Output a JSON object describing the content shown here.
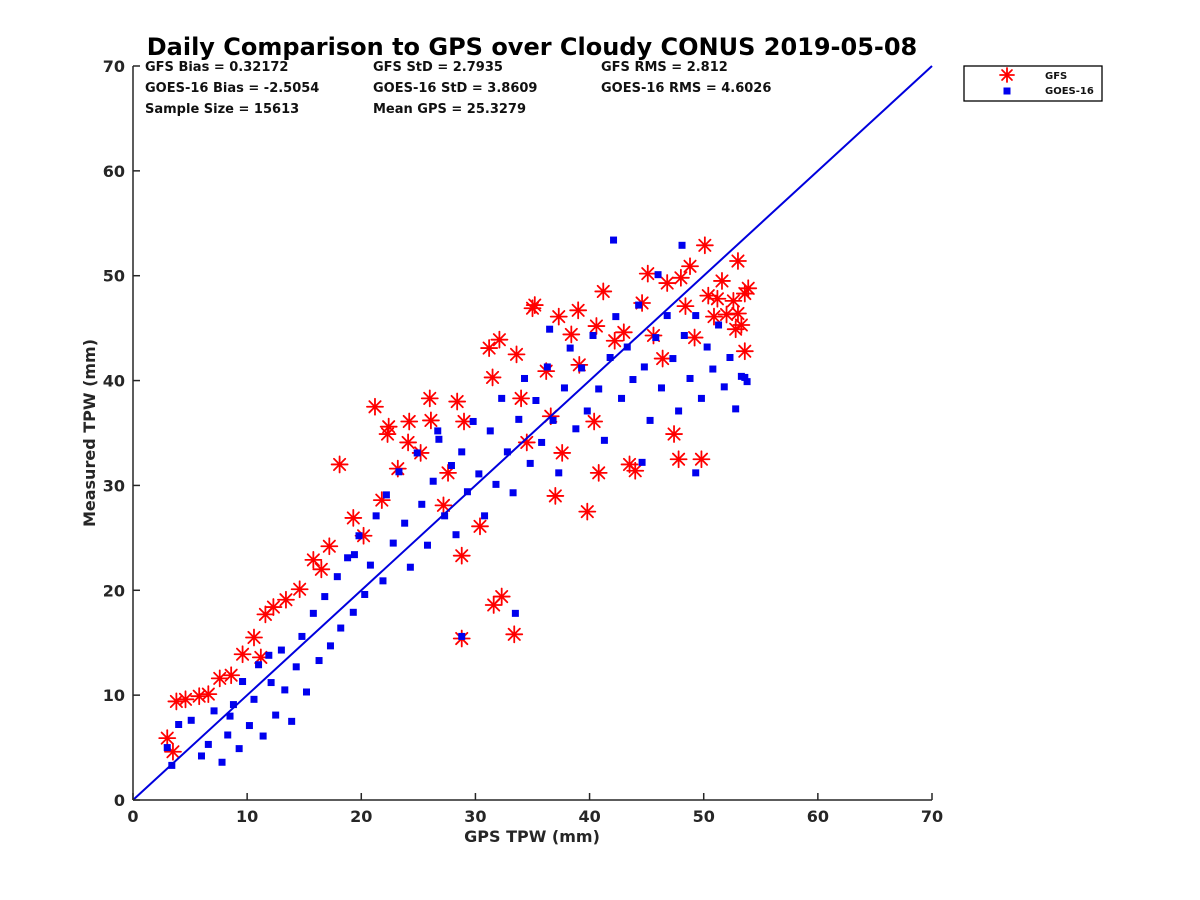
{
  "chart_data": {
    "type": "scatter",
    "title": "Daily Comparison to GPS over Cloudy CONUS 2019-05-08",
    "xlabel": "GPS TPW (mm)",
    "ylabel": "Measured TPW (mm)",
    "xlim": [
      0,
      70
    ],
    "ylim": [
      0,
      70
    ],
    "xticks": [
      0,
      10,
      20,
      30,
      40,
      50,
      60,
      70
    ],
    "yticks": [
      0,
      10,
      20,
      30,
      40,
      50,
      60,
      70
    ],
    "grid": false,
    "legend_position": "outside-top-right",
    "one_to_one_line": {
      "x": [
        0,
        70
      ],
      "y": [
        0,
        70
      ],
      "color": "#0000dd"
    },
    "stats": [
      {
        "text": "GFS Bias = 0.32172"
      },
      {
        "text": "GFS StD = 2.7935"
      },
      {
        "text": "GFS RMS = 2.812"
      },
      {
        "text": "GOES-16 Bias = -2.5054"
      },
      {
        "text": "GOES-16 StD = 3.8609"
      },
      {
        "text": "GOES-16 RMS = 4.6026"
      },
      {
        "text": "Sample Size = 15613"
      },
      {
        "text": "Mean GPS = 25.3279"
      }
    ],
    "series": [
      {
        "name": "GFS",
        "marker": "asterisk",
        "color": "#ff0000",
        "points": [
          [
            3.0,
            5.9
          ],
          [
            3.5,
            4.6
          ],
          [
            3.8,
            9.4
          ],
          [
            4.6,
            9.6
          ],
          [
            5.8,
            9.9
          ],
          [
            6.6,
            10.1
          ],
          [
            7.6,
            11.6
          ],
          [
            8.6,
            11.9
          ],
          [
            9.6,
            13.9
          ],
          [
            10.6,
            15.5
          ],
          [
            11.6,
            17.7
          ],
          [
            12.3,
            18.4
          ],
          [
            13.4,
            19.1
          ],
          [
            14.6,
            20.1
          ],
          [
            15.8,
            22.9
          ],
          [
            17.2,
            24.2
          ],
          [
            18.1,
            32.0
          ],
          [
            19.3,
            26.9
          ],
          [
            21.2,
            37.5
          ],
          [
            21.8,
            28.6
          ],
          [
            22.3,
            34.9
          ],
          [
            22.4,
            35.6
          ],
          [
            23.2,
            31.6
          ],
          [
            24.2,
            36.1
          ],
          [
            24.1,
            34.1
          ],
          [
            25.2,
            33.1
          ],
          [
            26.0,
            38.3
          ],
          [
            26.1,
            36.2
          ],
          [
            27.6,
            31.2
          ],
          [
            28.4,
            38.0
          ],
          [
            29.0,
            36.1
          ],
          [
            28.8,
            23.3
          ],
          [
            28.8,
            15.4
          ],
          [
            30.4,
            26.1
          ],
          [
            31.2,
            43.1
          ],
          [
            31.6,
            18.6
          ],
          [
            32.3,
            19.4
          ],
          [
            32.1,
            43.9
          ],
          [
            33.4,
            15.8
          ],
          [
            33.6,
            42.5
          ],
          [
            34.0,
            38.3
          ],
          [
            34.5,
            34.1
          ],
          [
            35.0,
            46.9
          ],
          [
            35.2,
            47.2
          ],
          [
            36.2,
            40.9
          ],
          [
            37.0,
            29.0
          ],
          [
            37.3,
            46.1
          ],
          [
            37.6,
            33.1
          ],
          [
            38.4,
            44.4
          ],
          [
            39.0,
            46.7
          ],
          [
            39.1,
            41.5
          ],
          [
            39.8,
            27.5
          ],
          [
            40.4,
            36.1
          ],
          [
            40.8,
            31.2
          ],
          [
            41.2,
            48.5
          ],
          [
            42.2,
            43.8
          ],
          [
            43.0,
            44.6
          ],
          [
            43.5,
            32.0
          ],
          [
            44.0,
            31.4
          ],
          [
            44.6,
            47.4
          ],
          [
            45.1,
            50.2
          ],
          [
            45.6,
            44.3
          ],
          [
            46.4,
            42.1
          ],
          [
            46.8,
            49.3
          ],
          [
            47.4,
            34.9
          ],
          [
            47.8,
            32.5
          ],
          [
            48.0,
            49.8
          ],
          [
            48.4,
            47.1
          ],
          [
            48.8,
            50.9
          ],
          [
            49.2,
            44.1
          ],
          [
            49.8,
            32.5
          ],
          [
            50.1,
            52.9
          ],
          [
            50.4,
            48.1
          ],
          [
            50.9,
            46.1
          ],
          [
            51.2,
            47.8
          ],
          [
            51.6,
            49.5
          ],
          [
            52.0,
            46.3
          ],
          [
            52.6,
            47.6
          ],
          [
            53.0,
            46.4
          ],
          [
            53.0,
            51.4
          ],
          [
            53.3,
            45.3
          ],
          [
            53.6,
            42.8
          ],
          [
            53.6,
            48.3
          ],
          [
            53.9,
            48.8
          ],
          [
            52.8,
            44.9
          ],
          [
            40.6,
            45.2
          ],
          [
            36.6,
            36.6
          ],
          [
            31.5,
            40.3
          ],
          [
            27.2,
            28.1
          ],
          [
            20.2,
            25.2
          ],
          [
            16.5,
            22.0
          ],
          [
            11.2,
            13.6
          ]
        ]
      },
      {
        "name": "GOES-16",
        "marker": "square",
        "color": "#0000ee",
        "points": [
          [
            3.0,
            5.0
          ],
          [
            3.4,
            3.3
          ],
          [
            4.0,
            7.2
          ],
          [
            5.1,
            7.6
          ],
          [
            6.0,
            4.2
          ],
          [
            6.6,
            5.3
          ],
          [
            7.1,
            8.5
          ],
          [
            7.8,
            3.6
          ],
          [
            8.3,
            6.2
          ],
          [
            8.8,
            9.1
          ],
          [
            9.3,
            4.9
          ],
          [
            9.6,
            11.3
          ],
          [
            10.2,
            7.1
          ],
          [
            10.6,
            9.6
          ],
          [
            11.0,
            12.9
          ],
          [
            11.4,
            6.1
          ],
          [
            12.1,
            11.2
          ],
          [
            12.5,
            8.1
          ],
          [
            13.0,
            14.3
          ],
          [
            13.3,
            10.5
          ],
          [
            13.9,
            7.5
          ],
          [
            14.3,
            12.7
          ],
          [
            14.8,
            15.6
          ],
          [
            15.2,
            10.3
          ],
          [
            15.8,
            17.8
          ],
          [
            16.3,
            13.3
          ],
          [
            16.8,
            19.4
          ],
          [
            17.3,
            14.7
          ],
          [
            17.9,
            21.3
          ],
          [
            18.2,
            16.4
          ],
          [
            18.8,
            23.1
          ],
          [
            19.3,
            17.9
          ],
          [
            19.8,
            25.2
          ],
          [
            20.3,
            19.6
          ],
          [
            20.8,
            22.4
          ],
          [
            21.3,
            27.1
          ],
          [
            21.9,
            20.9
          ],
          [
            22.2,
            29.1
          ],
          [
            22.8,
            24.5
          ],
          [
            23.3,
            31.3
          ],
          [
            23.8,
            26.4
          ],
          [
            24.3,
            22.2
          ],
          [
            24.9,
            33.1
          ],
          [
            25.3,
            28.2
          ],
          [
            25.8,
            24.3
          ],
          [
            26.3,
            30.4
          ],
          [
            26.8,
            34.4
          ],
          [
            27.3,
            27.1
          ],
          [
            27.9,
            31.9
          ],
          [
            28.3,
            25.3
          ],
          [
            28.8,
            33.2
          ],
          [
            29.3,
            29.4
          ],
          [
            29.8,
            36.1
          ],
          [
            30.3,
            31.1
          ],
          [
            30.8,
            27.1
          ],
          [
            31.3,
            35.2
          ],
          [
            31.8,
            30.1
          ],
          [
            32.3,
            38.3
          ],
          [
            32.8,
            33.2
          ],
          [
            33.3,
            29.3
          ],
          [
            33.8,
            36.3
          ],
          [
            34.3,
            40.2
          ],
          [
            34.8,
            32.1
          ],
          [
            35.3,
            38.1
          ],
          [
            35.8,
            34.1
          ],
          [
            36.3,
            41.3
          ],
          [
            36.8,
            36.2
          ],
          [
            37.3,
            31.2
          ],
          [
            37.8,
            39.3
          ],
          [
            38.3,
            43.1
          ],
          [
            38.8,
            35.4
          ],
          [
            39.3,
            41.2
          ],
          [
            39.8,
            37.1
          ],
          [
            40.3,
            44.3
          ],
          [
            40.8,
            39.2
          ],
          [
            41.3,
            34.3
          ],
          [
            41.8,
            42.2
          ],
          [
            42.3,
            46.1
          ],
          [
            42.8,
            38.3
          ],
          [
            43.3,
            43.2
          ],
          [
            43.8,
            40.1
          ],
          [
            44.3,
            47.2
          ],
          [
            44.8,
            41.3
          ],
          [
            45.3,
            36.2
          ],
          [
            45.8,
            44.1
          ],
          [
            46.3,
            39.3
          ],
          [
            46.8,
            46.2
          ],
          [
            47.3,
            42.1
          ],
          [
            47.8,
            37.1
          ],
          [
            48.3,
            44.3
          ],
          [
            48.8,
            40.2
          ],
          [
            49.3,
            46.2
          ],
          [
            49.8,
            38.3
          ],
          [
            50.3,
            43.2
          ],
          [
            50.8,
            41.1
          ],
          [
            51.3,
            45.3
          ],
          [
            51.8,
            39.4
          ],
          [
            52.3,
            42.2
          ],
          [
            52.8,
            37.3
          ],
          [
            53.3,
            40.4
          ],
          [
            53.8,
            39.9
          ],
          [
            53.6,
            40.3
          ],
          [
            49.3,
            31.2
          ],
          [
            44.6,
            32.2
          ],
          [
            42.1,
            53.4
          ],
          [
            48.1,
            52.9
          ],
          [
            33.5,
            17.8
          ],
          [
            28.8,
            15.6
          ],
          [
            8.5,
            8.0
          ],
          [
            11.9,
            13.8
          ],
          [
            19.4,
            23.4
          ],
          [
            26.7,
            35.2
          ],
          [
            36.5,
            44.9
          ],
          [
            46.0,
            50.1
          ]
        ]
      }
    ]
  }
}
